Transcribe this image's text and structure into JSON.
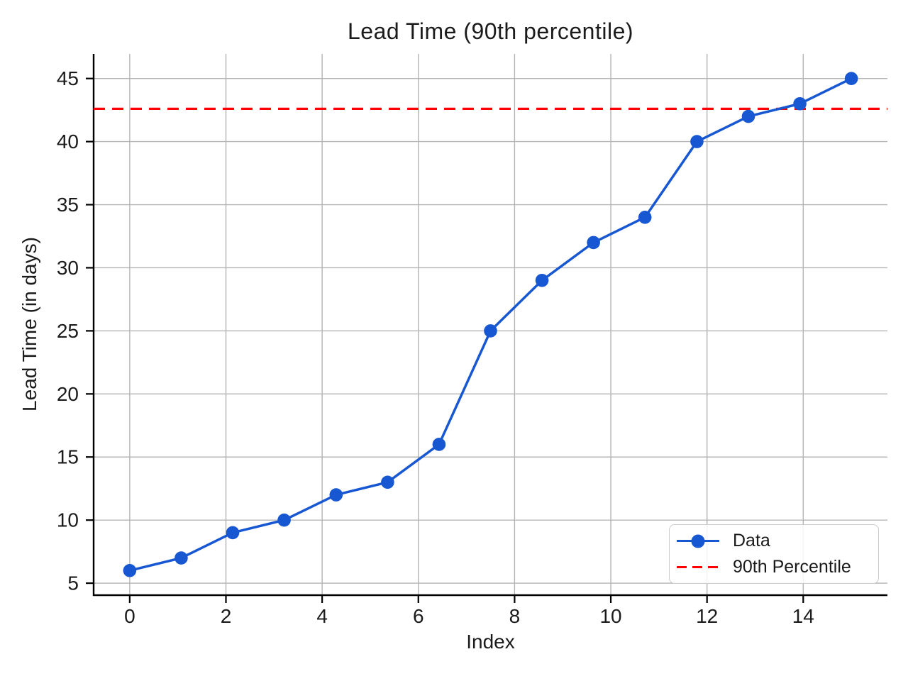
{
  "chart_data": {
    "type": "line",
    "title": "Lead Time (90th percentile)",
    "xlabel": "Index",
    "ylabel": "Lead Time (in days)",
    "xlim": [
      -0.75,
      15.75
    ],
    "ylim": [
      4.05,
      46.95
    ],
    "xticks": [
      0,
      2,
      4,
      6,
      8,
      10,
      12,
      14
    ],
    "yticks": [
      5,
      10,
      15,
      20,
      25,
      30,
      35,
      40,
      45
    ],
    "grid": true,
    "legend_position": "lower right",
    "series": [
      {
        "name": "Data",
        "style": "solid line with circle markers",
        "color": "#1757d2",
        "x": [
          0,
          1.07,
          2.14,
          3.21,
          4.29,
          5.36,
          6.43,
          7.5,
          8.57,
          9.64,
          10.71,
          11.79,
          12.86,
          13.93,
          15
        ],
        "y": [
          6,
          7,
          9,
          10,
          12,
          13,
          16,
          25,
          29,
          32,
          34,
          40,
          42,
          43,
          45
        ]
      }
    ],
    "reference_lines": [
      {
        "label": "90th Percentile",
        "orientation": "horizontal",
        "value": 42.6,
        "color": "#ff0000",
        "style": "dashed"
      }
    ],
    "style": {
      "grid_color": "#b4b4b4",
      "spine_color": "#000000",
      "text_color": "#1b1b1b"
    }
  }
}
